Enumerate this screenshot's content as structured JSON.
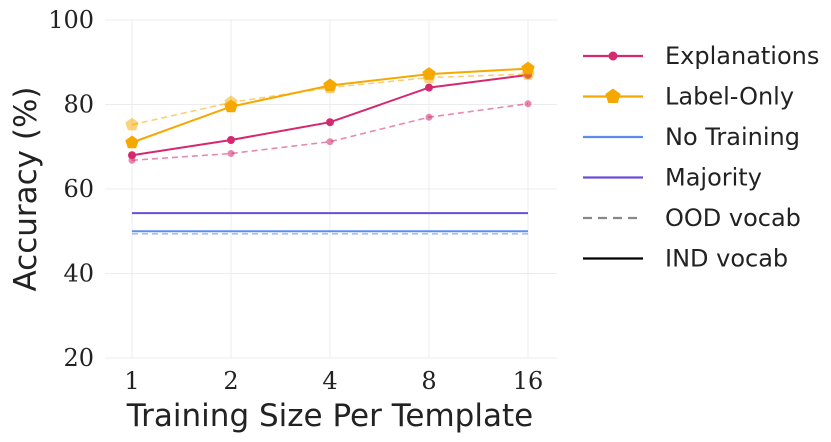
{
  "chart_data": {
    "type": "line",
    "title": "",
    "xlabel": "Training Size Per Template",
    "ylabel": "Accuracy (%)",
    "categories": [
      "1",
      "2",
      "4",
      "8",
      "16"
    ],
    "ylim": [
      20,
      100
    ],
    "yticks": [
      20,
      40,
      60,
      80,
      100
    ],
    "grid": true,
    "legend_position": "right",
    "series": [
      {
        "name": "Explanations",
        "vocab": "IND vocab",
        "color": "#d6286f",
        "marker": "circle",
        "values": [
          68,
          71.6,
          75.8,
          84,
          87
        ]
      },
      {
        "name": "Explanations",
        "vocab": "OOD vocab",
        "color": "#d6286f",
        "marker": "circle",
        "values": [
          66.8,
          68.4,
          71.2,
          77,
          80.2
        ]
      },
      {
        "name": "Label-Only",
        "vocab": "IND vocab",
        "color": "#f5a800",
        "marker": "pentagon",
        "values": [
          71,
          79.5,
          84.5,
          87.2,
          88.5
        ]
      },
      {
        "name": "Label-Only",
        "vocab": "OOD vocab",
        "color": "#f5a800",
        "marker": "pentagon",
        "values": [
          75.2,
          80.5,
          84,
          86.4,
          87.2
        ]
      },
      {
        "name": "No Training",
        "vocab": "IND vocab",
        "color": "#5b8def",
        "marker": "none",
        "values": [
          50,
          50,
          50,
          50,
          50
        ]
      },
      {
        "name": "No Training",
        "vocab": "OOD vocab",
        "color": "#5b8def",
        "marker": "none",
        "values": [
          49.4,
          49.4,
          49.4,
          49.4,
          49.4
        ]
      },
      {
        "name": "Majority",
        "vocab": "IND vocab",
        "color": "#6a4fd6",
        "marker": "none",
        "values": [
          54.3,
          54.3,
          54.3,
          54.3,
          54.3
        ]
      }
    ],
    "legend": [
      {
        "label": "Explanations",
        "color": "#d6286f",
        "style": "solid",
        "marker": "circle"
      },
      {
        "label": "Label-Only",
        "color": "#f5a800",
        "style": "solid",
        "marker": "pentagon"
      },
      {
        "label": "No Training",
        "color": "#5b8def",
        "style": "solid",
        "marker": "none"
      },
      {
        "label": "Majority",
        "color": "#6a4fd6",
        "style": "solid",
        "marker": "none"
      },
      {
        "label": "OOD vocab",
        "color": "#888888",
        "style": "dashed",
        "marker": "none"
      },
      {
        "label": "IND vocab",
        "color": "#000000",
        "style": "solid",
        "marker": "none"
      }
    ]
  }
}
